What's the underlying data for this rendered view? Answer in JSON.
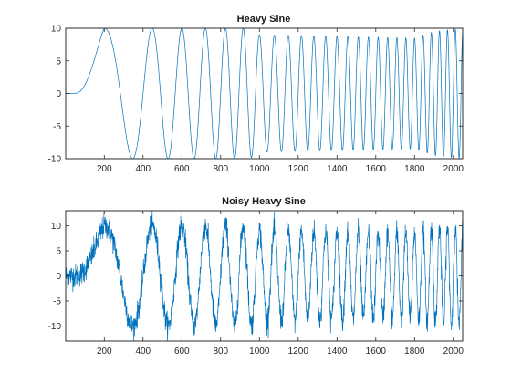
{
  "chart_data": [
    {
      "type": "line",
      "title": "Heavy Sine",
      "xlabel": "",
      "ylabel": "",
      "xlim": [
        1,
        2048
      ],
      "ylim": [
        -10,
        10
      ],
      "xticks": [
        200,
        400,
        600,
        800,
        1000,
        1200,
        1400,
        1600,
        1800,
        2000
      ],
      "yticks": [
        -10,
        -5,
        0,
        5,
        10
      ],
      "grid": false,
      "legend": "none",
      "color": "#0072BD",
      "series": [
        {
          "n": 2048,
          "envelope": {
            "x": [
              1,
              60,
              120,
              200,
              260,
              400,
              700,
              950,
              1000,
              1800,
              1900,
              2048
            ],
            "y": [
              0,
              0.3,
              5,
              10,
              10,
              10,
              10,
              10,
              9,
              8.5,
              9.5,
              10
            ]
          },
          "phase_chirp": "x^2",
          "values_note": ""
        }
      ]
    },
    {
      "type": "line",
      "title": "Noisy Heavy Sine",
      "xlabel": "",
      "ylabel": "",
      "xlim": [
        1,
        2048
      ],
      "ylim": [
        -13,
        13
      ],
      "xticks": [
        200,
        400,
        600,
        800,
        1000,
        1200,
        1400,
        1600,
        1800,
        2000
      ],
      "yticks": [
        -10,
        -5,
        0,
        5,
        10
      ],
      "grid": false,
      "legend": "none",
      "color": "#0072BD",
      "series": [
        {
          "n": 2048,
          "envelope": {
            "x": [
              1,
              60,
              120,
              200,
              260,
              400,
              700,
              950,
              1000,
              1800,
              1900,
              2048
            ],
            "y": [
              0,
              0.3,
              5,
              10,
              10,
              10,
              10,
              10,
              9,
              8.5,
              9.5,
              10
            ]
          },
          "phase_chirp": "x^2",
          "noise_sd": 1.2
        }
      ]
    }
  ]
}
